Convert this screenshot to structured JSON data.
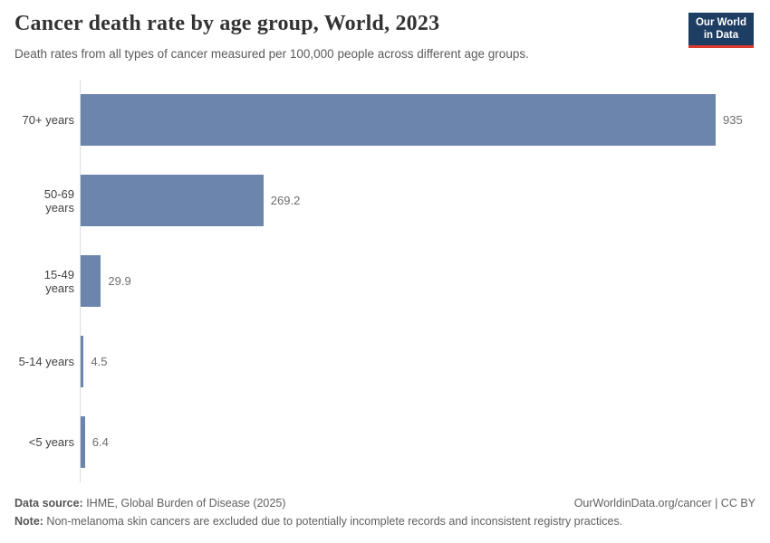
{
  "header": {
    "title": "Cancer death rate by age group, World, 2023",
    "subtitle": "Death rates from all types of cancer measured per 100,000 people across different age groups.",
    "logo": {
      "line1": "Our World",
      "line2": "in Data"
    }
  },
  "chart_data": {
    "type": "bar",
    "orientation": "horizontal",
    "title": "Cancer death rate by age group, World, 2023",
    "categories": [
      "70+ years",
      "50-69 years",
      "15-49 years",
      "5-14 years",
      "<5 years"
    ],
    "values": [
      935,
      269.2,
      29.9,
      4.5,
      6.4
    ],
    "value_labels": [
      "935",
      "269.2",
      "29.9",
      "4.5",
      "6.4"
    ],
    "xlabel": "",
    "ylabel": "",
    "xlim": [
      0,
      935
    ],
    "grid": false,
    "legend": "none",
    "bar_color": "#6b85ad",
    "unit": "deaths per 100,000 people"
  },
  "footer": {
    "datasource_label": "Data source:",
    "datasource_value": " IHME, Global Burden of Disease (2025)",
    "credit": "OurWorldinData.org/cancer | CC BY",
    "note_label": "Note:",
    "note_value": " Non-melanoma skin cancers are excluded due to potentially incomplete records and inconsistent registry practices."
  },
  "colors": {
    "bar": "#6b85ad",
    "logo_bg": "#1d3d63",
    "logo_accent": "#dc3a31",
    "axis": "#dcdcdc"
  }
}
